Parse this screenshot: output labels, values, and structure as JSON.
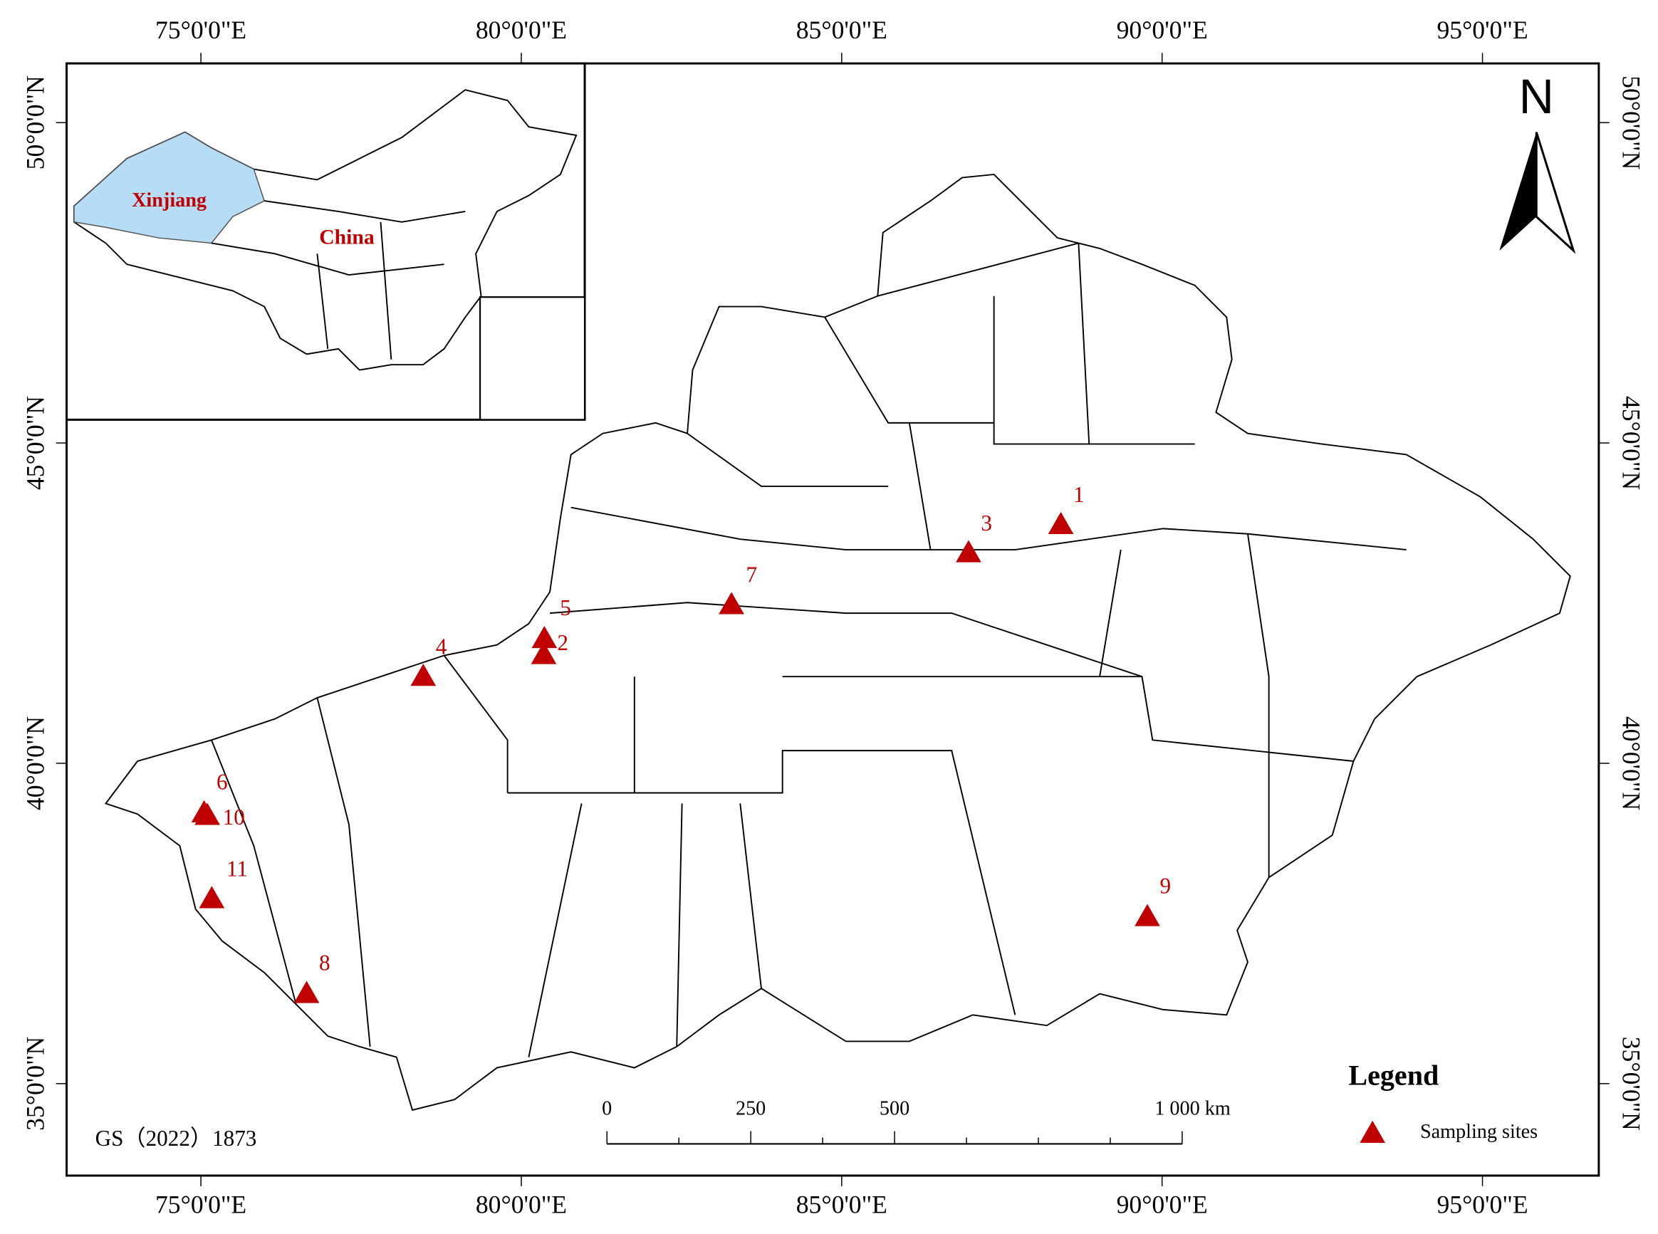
{
  "map": {
    "lon_ticks": [
      {
        "value": 75,
        "label": "75°0'0\"E"
      },
      {
        "value": 80,
        "label": "80°0'0\"E"
      },
      {
        "value": 85,
        "label": "85°0'0\"E"
      },
      {
        "value": 90,
        "label": "90°0'0\"E"
      },
      {
        "value": 95,
        "label": "95°0'0\"E"
      }
    ],
    "lat_ticks": [
      {
        "value": 35,
        "label": "35°0'0\"N"
      },
      {
        "value": 40,
        "label": "40°0'0\"N"
      },
      {
        "value": 45,
        "label": "45°0'0\"N"
      },
      {
        "value": 50,
        "label": "50°0'0\"N"
      }
    ],
    "north": "N",
    "inset": {
      "region": "Xinjiang",
      "country": "China"
    },
    "sites": [
      {
        "label": "1",
        "lon": 88.42,
        "lat": 43.71
      },
      {
        "label": "2",
        "lon": 80.35,
        "lat": 41.68
      },
      {
        "label": "3",
        "lon": 86.98,
        "lat": 43.27
      },
      {
        "label": "4",
        "lon": 78.47,
        "lat": 41.34
      },
      {
        "label": "5",
        "lon": 80.36,
        "lat": 41.93
      },
      {
        "label": "6",
        "lon": 75.05,
        "lat": 39.21
      },
      {
        "label": "7",
        "lon": 83.28,
        "lat": 42.46
      },
      {
        "label": "8",
        "lon": 76.65,
        "lat": 36.39
      },
      {
        "label": "9",
        "lon": 89.77,
        "lat": 37.59
      },
      {
        "label": "10",
        "lon": 75.1,
        "lat": 39.17
      },
      {
        "label": "11",
        "lon": 75.17,
        "lat": 37.87
      }
    ],
    "legend": {
      "title": "Legend",
      "entry": "Sampling sites"
    },
    "scale_bar": {
      "ticks": [
        0,
        250,
        500,
        {
          "value": 1000,
          "label": "1 000 km"
        }
      ]
    },
    "approval_number": "GS（2022）1873"
  }
}
